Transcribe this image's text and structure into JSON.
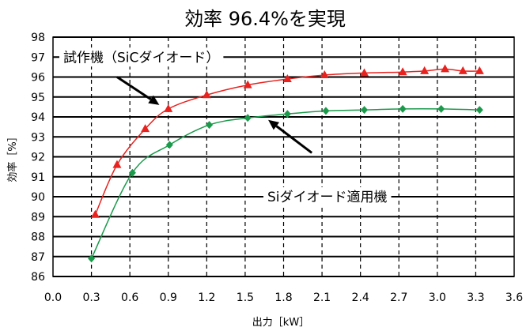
{
  "chart_data": {
    "type": "line",
    "title": "効率 96.4%を実現",
    "xlabel": "出力［kW］",
    "ylabel": "効率［%］",
    "xlim": [
      0.0,
      3.6
    ],
    "ylim": [
      86,
      98
    ],
    "x_ticks": [
      "0.0",
      "0.3",
      "0.6",
      "0.9",
      "1.2",
      "1.5",
      "1.8",
      "2.1",
      "2.4",
      "2.7",
      "3.0",
      "3.3",
      "3.6"
    ],
    "y_ticks": [
      "86",
      "87",
      "88",
      "89",
      "90",
      "91",
      "92",
      "93",
      "94",
      "95",
      "96",
      "97",
      "98"
    ],
    "grid": {
      "horizontal": "solid",
      "vertical": "dashed"
    },
    "series": [
      {
        "name": "試作機（SiCダイオード）",
        "color": "#e8231f",
        "marker": "triangle",
        "x": [
          0.33,
          0.5,
          0.72,
          0.9,
          1.2,
          1.52,
          1.83,
          2.12,
          2.43,
          2.73,
          2.9,
          3.06,
          3.2,
          3.33
        ],
        "y": [
          89.1,
          91.6,
          93.4,
          94.4,
          95.1,
          95.6,
          95.9,
          96.1,
          96.2,
          96.25,
          96.3,
          96.4,
          96.3,
          96.3
        ]
      },
      {
        "name": "Siダイオード適用機",
        "color": "#1b9a4b",
        "marker": "diamond",
        "x": [
          0.3,
          0.62,
          0.91,
          1.22,
          1.52,
          1.83,
          2.13,
          2.43,
          2.73,
          3.03,
          3.33
        ],
        "y": [
          86.9,
          91.2,
          92.6,
          93.6,
          93.95,
          94.15,
          94.3,
          94.35,
          94.4,
          94.4,
          94.35
        ]
      }
    ],
    "annotations": [
      {
        "text": "試作機（SiCダイオード）",
        "series": 0
      },
      {
        "text": "Siダイオード適用機",
        "series": 1
      }
    ]
  }
}
